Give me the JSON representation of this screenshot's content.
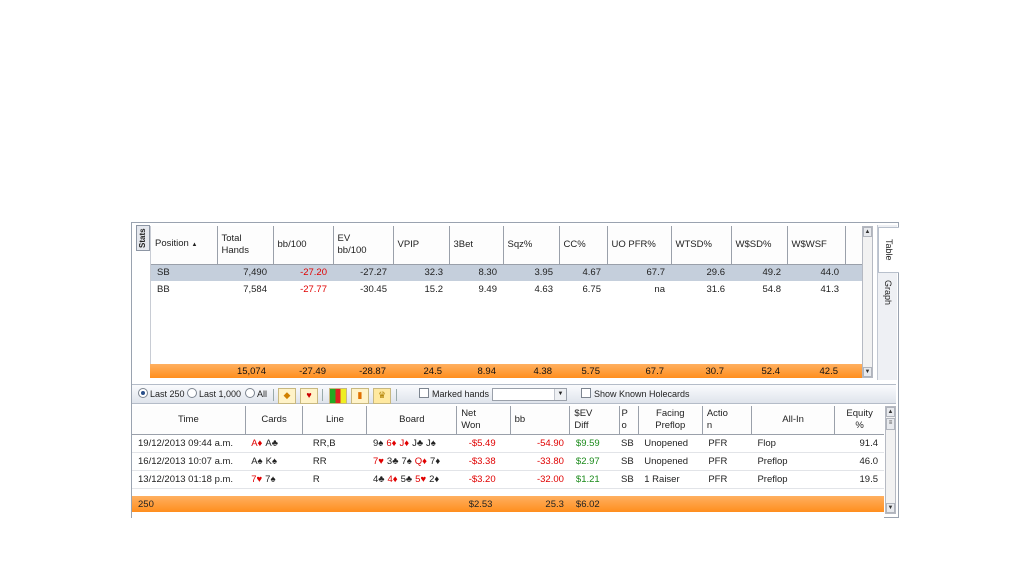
{
  "stats_tab": "Stats",
  "right_tabs": [
    "Table",
    "Graph"
  ],
  "stats_table": {
    "headers": [
      "Position",
      "Total\nHands",
      "bb/100",
      "EV\nbb/100",
      "VPIP",
      "3Bet",
      "Sqz%",
      "CC%",
      "UO PFR%",
      "WTSD%",
      "W$SD%",
      "W$WSF"
    ],
    "sort_icon": "sort-ascending-icon",
    "rows": [
      {
        "position": "SB",
        "total_hands": "7,490",
        "bb100": "-27.20",
        "ev_bb100": "-27.27",
        "vpip": "32.3",
        "threebet": "8.30",
        "sqz": "3.95",
        "cc": "4.67",
        "uo_pfr": "67.7",
        "wtsd": "29.6",
        "wsd": "49.2",
        "wwsf": "44.0"
      },
      {
        "position": "BB",
        "total_hands": "7,584",
        "bb100": "-27.77",
        "ev_bb100": "-30.45",
        "vpip": "15.2",
        "threebet": "9.49",
        "sqz": "4.63",
        "cc": "6.75",
        "uo_pfr": "na",
        "wtsd": "31.6",
        "wsd": "54.8",
        "wwsf": "41.3"
      }
    ],
    "totals": {
      "total_hands": "15,074",
      "bb100": "-27.49",
      "ev_bb100": "-28.87",
      "vpip": "24.5",
      "threebet": "8.94",
      "sqz": "4.38",
      "cc": "5.75",
      "uo_pfr": "67.7",
      "wtsd": "30.7",
      "wsd": "52.4",
      "wwsf": "42.5"
    }
  },
  "toolbar": {
    "radio_last250": "Last 250",
    "radio_last1000": "Last 1,000",
    "radio_all": "All",
    "marked_hands": "Marked hands",
    "marked_value": "",
    "show_known": "Show Known Holecards"
  },
  "hands_table": {
    "headers": [
      "Time",
      "Cards",
      "Line",
      "Board",
      "Net\nWon",
      "bb",
      "$EV\nDiff",
      "P\no",
      "Facing\nPreflop",
      "Actio\nn",
      "All-In",
      "Equity\n%"
    ],
    "rows": [
      {
        "time": "19/12/2013 09:44 a.m.",
        "cards": [
          [
            "A",
            "♦",
            "r"
          ],
          [
            "A",
            "♣",
            "b"
          ]
        ],
        "line": "RR,B",
        "board": [
          [
            "9",
            "♠",
            "b"
          ],
          [
            "6",
            "♦",
            "r"
          ],
          [
            "J",
            "♦",
            "r"
          ],
          [
            "J",
            "♣",
            "b"
          ],
          [
            "J",
            "♠",
            "b"
          ]
        ],
        "net_won": "-$5.49",
        "bb": "-54.90",
        "ev_diff": "$9.59",
        "pos": "SB",
        "facing": "Unopened",
        "action": "PFR",
        "allin": "Flop",
        "equity": "91.4"
      },
      {
        "time": "16/12/2013 10:07 a.m.",
        "cards": [
          [
            "A",
            "♠",
            "b"
          ],
          [
            "K",
            "♠",
            "b"
          ]
        ],
        "line": "RR",
        "board": [
          [
            "7",
            "♥",
            "r"
          ],
          [
            "3",
            "♣",
            "b"
          ],
          [
            "7",
            "♠",
            "b"
          ],
          [
            "Q",
            "♦",
            "r"
          ],
          [
            "7",
            "♦",
            "b"
          ]
        ],
        "net_won": "-$3.38",
        "bb": "-33.80",
        "ev_diff": "$2.97",
        "pos": "SB",
        "facing": "Unopened",
        "action": "PFR",
        "allin": "Preflop",
        "equity": "46.0"
      },
      {
        "time": "13/12/2013 01:18 p.m.",
        "cards": [
          [
            "7",
            "♥",
            "r"
          ],
          [
            "7",
            "♠",
            "b"
          ]
        ],
        "line": "R",
        "board": [
          [
            "4",
            "♣",
            "b"
          ],
          [
            "4",
            "♦",
            "r"
          ],
          [
            "5",
            "♣",
            "b"
          ],
          [
            "5",
            "♥",
            "r"
          ],
          [
            "2",
            "♦",
            "b"
          ]
        ],
        "net_won": "-$3.20",
        "bb": "-32.00",
        "ev_diff": "$1.21",
        "pos": "SB",
        "facing": "1 Raiser",
        "action": "PFR",
        "allin": "Preflop",
        "equity": "19.5"
      }
    ],
    "totals": {
      "count": "250",
      "net_won": "$2.53",
      "bb": "25.3",
      "ev_diff": "$6.02"
    }
  }
}
